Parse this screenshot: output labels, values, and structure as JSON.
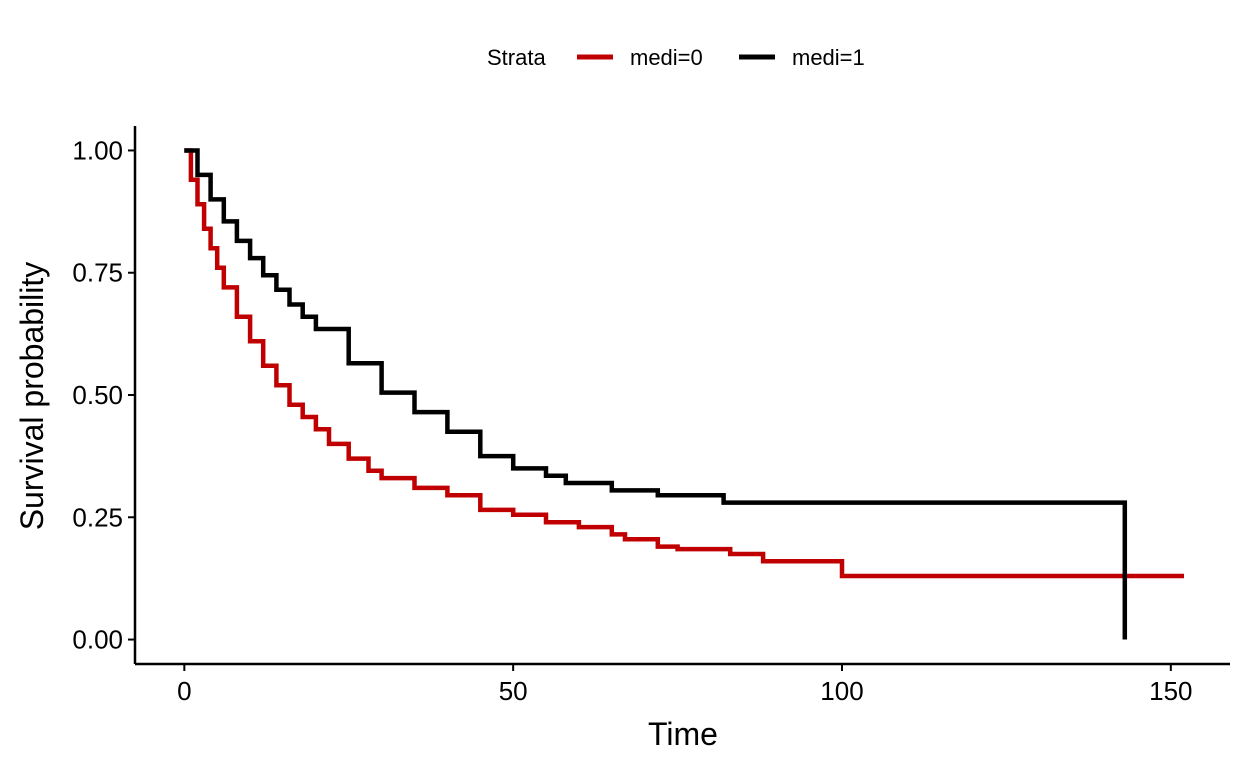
{
  "chart_data": {
    "type": "line",
    "subtype": "step",
    "xlabel": "Time",
    "ylabel": "Survival probability",
    "xlim": [
      -7.5,
      159
    ],
    "ylim": [
      -0.05,
      1.05
    ],
    "x_ticks": [
      0,
      50,
      100,
      150
    ],
    "x_tick_labels": [
      "0",
      "50",
      "100",
      "150"
    ],
    "y_ticks": [
      0,
      0.25,
      0.5,
      0.75,
      1.0
    ],
    "y_tick_labels": [
      "0.00",
      "0.25",
      "0.50",
      "0.75",
      "1.00"
    ],
    "grid": false,
    "legend": {
      "title": "Strata",
      "position": "top",
      "entries": [
        "medi=0",
        "medi=1"
      ]
    },
    "series": [
      {
        "name": "medi=0",
        "color": "#c00000",
        "x": [
          0,
          1,
          2,
          3,
          4,
          5,
          6,
          8,
          10,
          12,
          14,
          16,
          18,
          20,
          22,
          25,
          28,
          30,
          35,
          40,
          45,
          50,
          55,
          60,
          65,
          67,
          72,
          75,
          83,
          88,
          100,
          152
        ],
        "y": [
          1.0,
          0.94,
          0.89,
          0.84,
          0.8,
          0.76,
          0.72,
          0.66,
          0.61,
          0.56,
          0.52,
          0.48,
          0.455,
          0.43,
          0.4,
          0.37,
          0.345,
          0.33,
          0.31,
          0.295,
          0.265,
          0.255,
          0.24,
          0.23,
          0.215,
          0.205,
          0.19,
          0.185,
          0.175,
          0.16,
          0.13,
          0.13
        ]
      },
      {
        "name": "medi=1",
        "color": "#000000",
        "x": [
          0,
          2,
          4,
          6,
          8,
          10,
          12,
          14,
          16,
          18,
          20,
          25,
          30,
          35,
          40,
          45,
          50,
          55,
          58,
          65,
          72,
          82,
          143,
          143
        ],
        "y": [
          1.0,
          0.95,
          0.9,
          0.855,
          0.815,
          0.78,
          0.745,
          0.715,
          0.685,
          0.66,
          0.635,
          0.565,
          0.505,
          0.465,
          0.425,
          0.375,
          0.35,
          0.335,
          0.32,
          0.305,
          0.295,
          0.28,
          0.28,
          0.0
        ]
      }
    ]
  }
}
